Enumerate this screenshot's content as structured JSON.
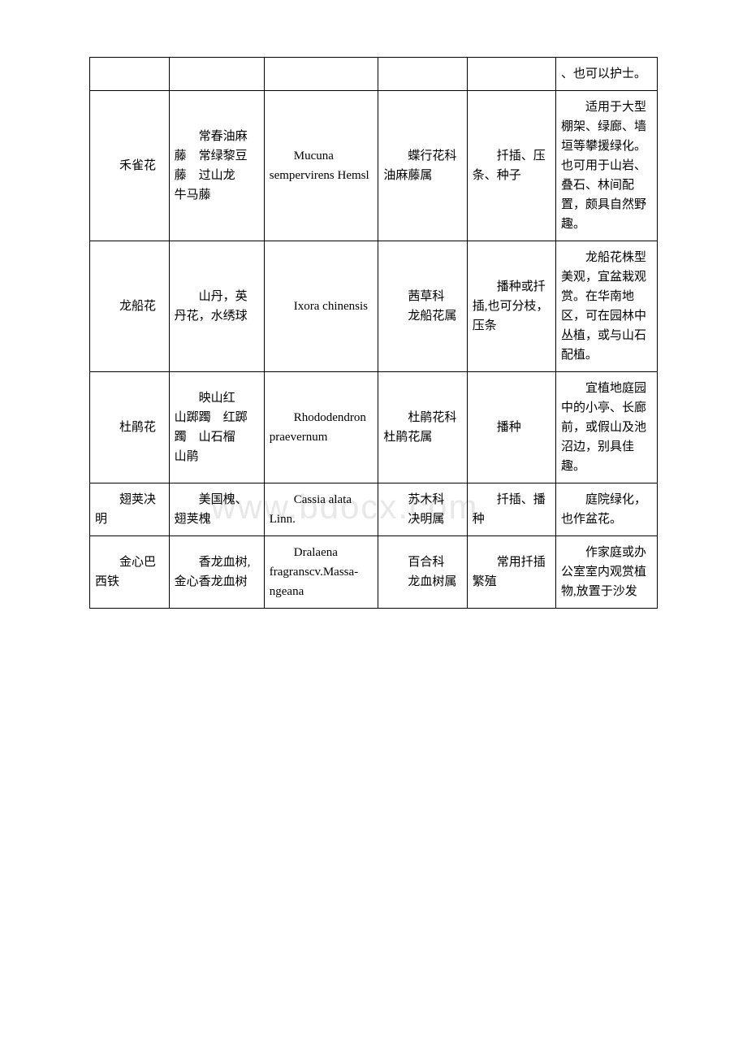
{
  "watermark": "www.bdocx.com",
  "rows": [
    {
      "name": "",
      "alias": "",
      "latin": "",
      "family": "",
      "method": "",
      "use": "、也可以护士。"
    },
    {
      "name": "　　禾雀花",
      "alias": "　　常春油麻藤　常绿黎豆藤　过山龙　牛马藤",
      "latin": "　　Mucuna sempervirens Hemsl",
      "family": "　　蝶行花科 油麻藤属",
      "method": "　　扦插、压条、种子",
      "use": "　　适用于大型棚架、绿廊、墙垣等攀援绿化。也可用于山岩、叠石、林间配置，颇具自然野趣。"
    },
    {
      "name": "　　龙船花",
      "alias": "　　山丹，英丹花，水绣球",
      "latin": "　　Ixora chinensis",
      "family": "　　茜草科\n　　龙船花属",
      "method": "　　播种或扦插,也可分枝，压条",
      "use": "　　龙船花株型美观，宜盆栽观赏。在华南地区，可在园林中丛植，或与山石配植。"
    },
    {
      "name": "　　杜鹃花",
      "alias": "　　映山红　山踯躅　红踯躅　山石榴　山鹃",
      "latin": "　　Rhododendron praevernum",
      "family": "　　杜鹃花科杜鹃花属",
      "method": "　　播种",
      "use": "　　宜植地庭园中的小亭、长廊前，或假山及池沼边，别具佳趣。"
    },
    {
      "name": "　　翅荚决明",
      "alias": "　　美国槐、翅荚槐",
      "latin": "　　Cassia alata Linn.",
      "family": "　　苏木科\n　　决明属",
      "method": "　　扦插、播种",
      "use": "　　庭院绿化，也作盆花。"
    },
    {
      "name": "　　金心巴西铁",
      "alias": "　　香龙血树,金心香龙血树",
      "latin": "　　Dralaena fragranscv.Massa-ngeana",
      "family": "　　百合科\n　　龙血树属",
      "method": "　　常用扦插繁殖",
      "use": "　　作家庭或办公室室内观赏植物,放置于沙发"
    }
  ]
}
